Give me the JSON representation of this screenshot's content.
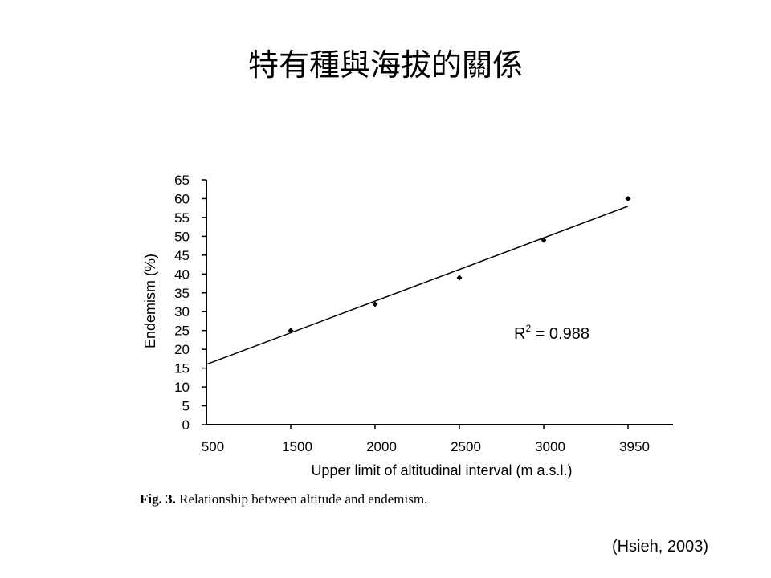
{
  "slide": {
    "title": "特有種與海拔的關係",
    "caption_label": "Fig. 3.",
    "caption_text": " Relationship between altitude and endemism.",
    "citation": "(Hsieh, 2003)"
  },
  "chart_data": {
    "type": "scatter",
    "title": "",
    "xlabel": "Upper limit of altitudinal interval  (m a.s.l.)",
    "ylabel": "Endemism (%)",
    "categories": [
      "500",
      "1500",
      "2000",
      "2500",
      "3000",
      "3950"
    ],
    "series": [
      {
        "values": [
          null,
          25,
          32,
          39,
          49,
          60
        ]
      }
    ],
    "trendline": {
      "type": "linear",
      "start": 16,
      "end": 58,
      "r2_label": "R",
      "r2_sup": "2",
      "r2_value": " = 0.988"
    },
    "ylim": [
      0,
      65
    ],
    "yticks": [
      0,
      5,
      10,
      15,
      20,
      25,
      30,
      35,
      40,
      45,
      50,
      55,
      60,
      65
    ],
    "grid": false,
    "legend": "none"
  }
}
